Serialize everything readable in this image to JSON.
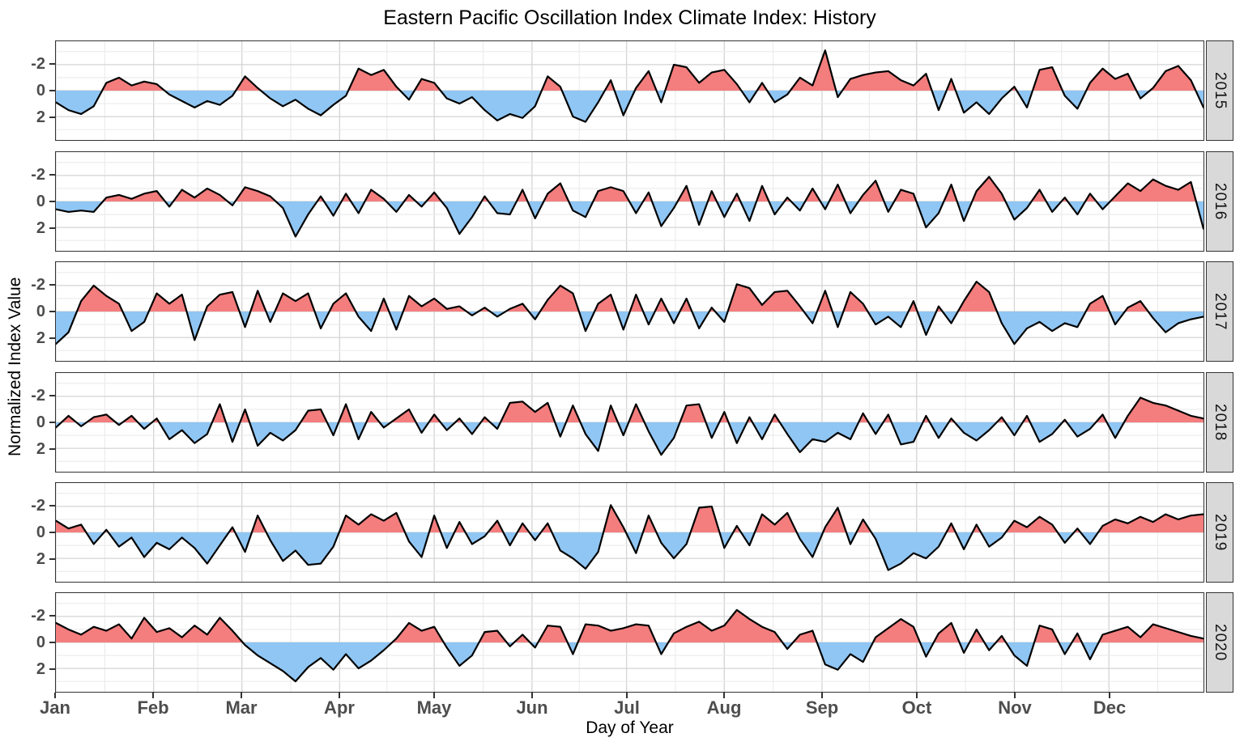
{
  "title": "Eastern Pacific Oscillation Index Climate Index: History",
  "axes": {
    "x_label": "Day of Year",
    "y_label": "Normalized Index Value",
    "x_tick_labels": [
      "Jan",
      "Feb",
      "Mar",
      "Apr",
      "May",
      "Jun",
      "Jul",
      "Aug",
      "Sep",
      "Oct",
      "Nov",
      "Dec"
    ],
    "y_tick_labels": [
      "2",
      "0",
      "-2"
    ]
  },
  "facets": [
    "2015",
    "2016",
    "2017",
    "2018",
    "2019",
    "2020"
  ],
  "colors": {
    "positive_fill": "#f47d7d",
    "negative_fill": "#8fc6f4",
    "line": "#000000",
    "strip_bg": "#d9d9d9",
    "panel_border": "#333333",
    "grid_major": "#d4d4d4",
    "grid_minor": "#ebebeb",
    "axis_text": "#4d4d4d"
  },
  "chart_data": {
    "type": "area",
    "title": "Eastern Pacific Oscillation Index Climate Index: History",
    "xlabel": "Day of Year",
    "ylabel": "Normalized Index Value",
    "legend": "none",
    "grid": "on",
    "facet_position": "right",
    "x_unit": "day_of_year",
    "start_day": 1,
    "sample_step_days": 4,
    "xlim": [
      1,
      365
    ],
    "ylim": [
      -3.8,
      3.8
    ],
    "y_ticks": [
      -2,
      0,
      2
    ],
    "y_grid_minor": [
      -3,
      -1,
      1,
      3
    ],
    "month_start_days": [
      1,
      32,
      60,
      91,
      121,
      152,
      182,
      213,
      244,
      274,
      305,
      335
    ],
    "fill_rule": "red above 0, blue below 0",
    "series": [
      {
        "name": "2015",
        "values": [
          -0.9,
          -1.5,
          -1.8,
          -1.2,
          0.6,
          1.0,
          0.4,
          0.7,
          0.5,
          -0.3,
          -0.8,
          -1.3,
          -0.8,
          -1.1,
          -0.4,
          1.1,
          0.2,
          -0.6,
          -1.2,
          -0.7,
          -1.4,
          -1.9,
          -1.1,
          -0.4,
          1.7,
          1.2,
          1.6,
          0.3,
          -0.7,
          0.9,
          0.6,
          -0.6,
          -1.0,
          -0.5,
          -1.5,
          -2.3,
          -1.8,
          -2.1,
          -1.2,
          1.1,
          0.3,
          -2.0,
          -2.4,
          -0.9,
          0.8,
          -1.9,
          0.2,
          1.5,
          -0.9,
          2.0,
          1.8,
          0.6,
          1.4,
          1.6,
          0.5,
          -0.9,
          0.6,
          -0.9,
          -0.3,
          1.0,
          0.4,
          3.1,
          -0.5,
          0.9,
          1.2,
          1.4,
          1.5,
          0.8,
          0.4,
          1.3,
          -1.5,
          0.9,
          -1.7,
          -0.9,
          -1.8,
          -0.6,
          0.3,
          -1.3,
          1.6,
          1.8,
          -0.4,
          -1.4,
          0.6,
          1.7,
          0.9,
          1.3,
          -0.6,
          0.2,
          1.5,
          1.9,
          0.8,
          -1.3
        ]
      },
      {
        "name": "2016",
        "values": [
          -0.6,
          -0.8,
          -0.7,
          -0.8,
          0.3,
          0.5,
          0.2,
          0.6,
          0.8,
          -0.4,
          0.9,
          0.3,
          1.0,
          0.5,
          -0.3,
          1.1,
          0.8,
          0.4,
          -0.5,
          -2.7,
          -1.0,
          0.4,
          -1.1,
          0.6,
          -0.9,
          0.9,
          0.2,
          -0.8,
          0.5,
          -0.4,
          0.7,
          -0.5,
          -2.5,
          -1.2,
          0.4,
          -0.9,
          -1.0,
          0.9,
          -1.3,
          0.6,
          1.4,
          -0.7,
          -1.2,
          0.8,
          1.1,
          0.8,
          -0.9,
          0.7,
          -1.9,
          -0.5,
          1.2,
          -1.8,
          0.8,
          -1.2,
          0.6,
          -1.5,
          1.2,
          -1.0,
          0.3,
          -0.7,
          1.0,
          -0.6,
          1.3,
          -0.9,
          0.5,
          1.6,
          -0.8,
          0.9,
          0.6,
          -2.0,
          -0.9,
          1.3,
          -1.5,
          0.8,
          1.9,
          0.6,
          -1.4,
          -0.5,
          0.9,
          -0.8,
          0.3,
          -1.0,
          0.6,
          -0.6,
          0.4,
          1.4,
          0.8,
          1.7,
          1.2,
          0.9,
          1.5,
          -2.1
        ]
      },
      {
        "name": "2017",
        "values": [
          -2.5,
          -1.6,
          0.8,
          2.0,
          1.2,
          0.6,
          -1.5,
          -0.8,
          1.4,
          0.6,
          1.3,
          -2.2,
          0.4,
          1.3,
          1.5,
          -1.2,
          1.6,
          -0.8,
          1.4,
          0.8,
          1.4,
          -1.3,
          0.6,
          1.4,
          -0.4,
          -1.5,
          1.0,
          -1.4,
          1.2,
          0.4,
          1.0,
          0.2,
          0.4,
          -0.3,
          0.3,
          -0.4,
          0.2,
          0.6,
          -0.6,
          0.9,
          2.0,
          1.4,
          -1.5,
          0.6,
          1.3,
          -1.4,
          1.3,
          -1.0,
          1.0,
          -0.9,
          1.0,
          -1.3,
          0.3,
          -0.8,
          2.1,
          1.8,
          0.5,
          1.5,
          1.6,
          0.4,
          -0.9,
          1.6,
          -1.2,
          1.5,
          0.6,
          -1.0,
          -0.4,
          -1.2,
          0.8,
          -1.8,
          0.4,
          -0.9,
          0.8,
          2.3,
          1.5,
          -0.9,
          -2.5,
          -1.3,
          -0.8,
          -1.5,
          -0.9,
          -1.2,
          0.6,
          1.2,
          -1.0,
          0.3,
          0.8,
          -0.5,
          -1.6,
          -0.9,
          -0.6,
          -0.4
        ]
      },
      {
        "name": "2018",
        "values": [
          -0.4,
          0.5,
          -0.3,
          0.4,
          0.6,
          -0.2,
          0.5,
          -0.5,
          0.3,
          -1.3,
          -0.6,
          -1.6,
          -0.9,
          1.4,
          -1.5,
          1.0,
          -1.8,
          -0.8,
          -1.4,
          -0.6,
          0.9,
          1.0,
          -1.0,
          1.4,
          -1.3,
          0.8,
          -0.4,
          0.3,
          1.0,
          -0.8,
          0.6,
          -0.6,
          0.3,
          -0.9,
          0.4,
          -0.5,
          1.5,
          1.6,
          0.8,
          1.5,
          -1.1,
          1.3,
          -0.9,
          -2.2,
          1.3,
          -1.0,
          1.4,
          -0.7,
          -2.5,
          -1.2,
          1.3,
          1.4,
          -1.2,
          0.8,
          -1.6,
          0.4,
          -1.3,
          0.6,
          -0.9,
          -2.3,
          -1.3,
          -1.5,
          -0.8,
          -1.3,
          0.7,
          -0.9,
          0.6,
          -1.7,
          -1.5,
          0.5,
          -1.2,
          0.3,
          -0.8,
          -1.4,
          -0.6,
          0.4,
          -1.0,
          0.5,
          -1.5,
          -0.9,
          0.2,
          -1.1,
          -0.5,
          0.6,
          -1.2,
          0.5,
          1.9,
          1.5,
          1.3,
          0.9,
          0.5,
          0.3
        ]
      },
      {
        "name": "2019",
        "values": [
          0.9,
          0.3,
          0.6,
          -0.9,
          0.2,
          -1.1,
          -0.4,
          -1.9,
          -0.8,
          -1.3,
          -0.4,
          -1.2,
          -2.4,
          -1.0,
          0.4,
          -1.5,
          1.3,
          -0.6,
          -2.2,
          -1.4,
          -2.5,
          -2.4,
          -1.1,
          1.3,
          0.6,
          1.4,
          0.9,
          1.5,
          -0.7,
          -1.9,
          1.3,
          -1.2,
          0.8,
          -0.9,
          -0.3,
          0.9,
          -1.0,
          0.7,
          -0.6,
          0.7,
          -1.4,
          -2.0,
          -2.8,
          -1.5,
          2.1,
          0.4,
          -1.6,
          1.3,
          -0.8,
          -2.0,
          -0.9,
          1.9,
          2.0,
          -1.2,
          0.5,
          -1.0,
          1.4,
          0.6,
          1.5,
          -0.5,
          -1.9,
          0.4,
          1.9,
          -0.9,
          1.0,
          -0.5,
          -2.9,
          -2.4,
          -1.6,
          -2.0,
          -1.1,
          0.7,
          -1.3,
          0.6,
          -1.1,
          -0.4,
          0.9,
          0.4,
          1.2,
          0.6,
          -0.8,
          0.3,
          -0.9,
          0.5,
          1.0,
          0.7,
          1.2,
          0.8,
          1.4,
          1.0,
          1.3,
          1.4
        ]
      },
      {
        "name": "2020",
        "values": [
          1.5,
          1.0,
          0.6,
          1.2,
          0.9,
          1.4,
          0.3,
          1.9,
          0.8,
          1.1,
          0.4,
          1.3,
          0.6,
          1.9,
          0.9,
          -0.2,
          -1.0,
          -1.6,
          -2.2,
          -3.0,
          -1.9,
          -1.2,
          -2.1,
          -0.9,
          -2.0,
          -1.4,
          -0.6,
          0.3,
          1.5,
          0.9,
          1.2,
          -0.4,
          -1.8,
          -1.0,
          0.8,
          0.9,
          -0.3,
          0.6,
          -0.4,
          1.3,
          1.2,
          -0.9,
          1.4,
          1.3,
          0.9,
          1.1,
          1.4,
          1.3,
          -0.9,
          0.7,
          1.2,
          1.6,
          0.9,
          1.3,
          2.5,
          1.8,
          1.2,
          0.8,
          -0.5,
          0.6,
          0.9,
          -1.7,
          -2.1,
          -0.9,
          -1.5,
          0.4,
          1.1,
          1.8,
          1.2,
          -1.1,
          0.7,
          1.5,
          -0.8,
          1.0,
          -0.6,
          0.5,
          -1.0,
          -1.8,
          1.3,
          1.0,
          -0.9,
          0.7,
          -1.3,
          0.6,
          0.9,
          1.2,
          0.4,
          1.4,
          1.1,
          0.8,
          0.5,
          0.3
        ]
      }
    ]
  }
}
